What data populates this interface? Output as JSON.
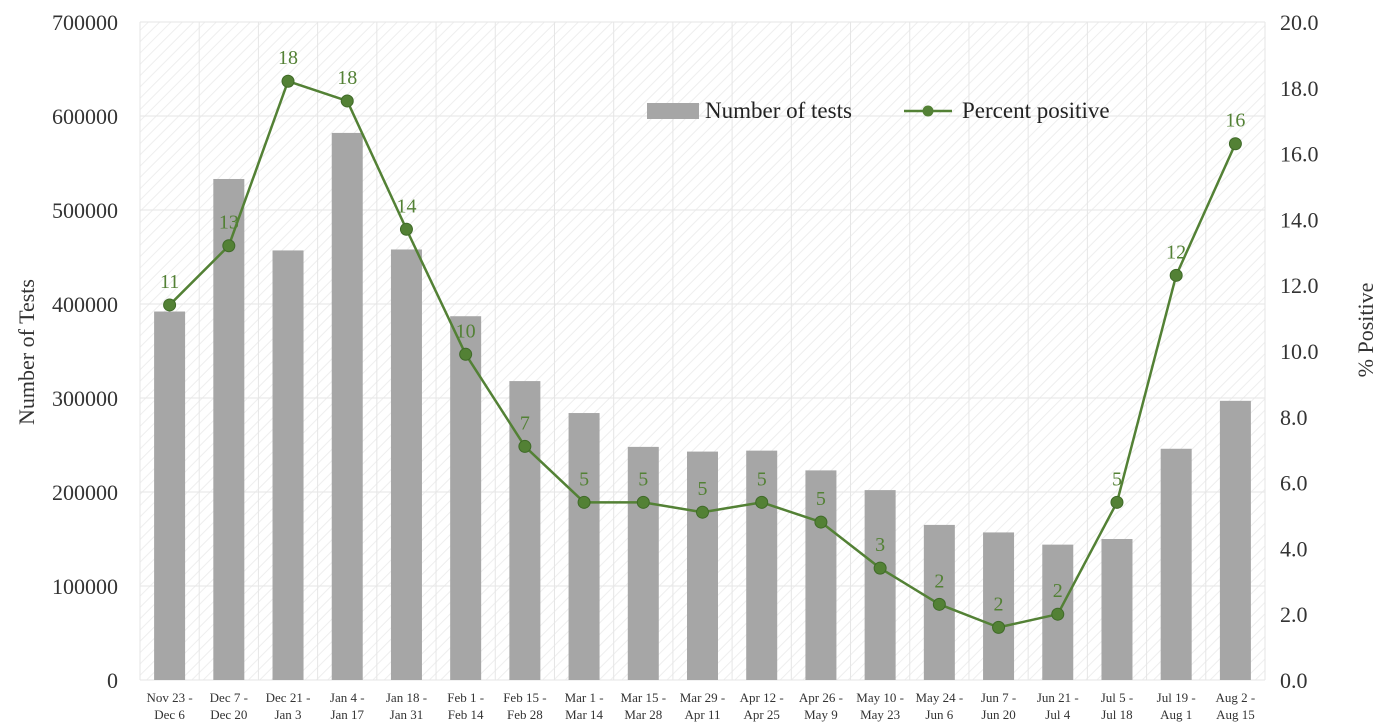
{
  "chart_data": {
    "type": "bar",
    "categories": [
      [
        "Nov 23 -",
        "Dec 6"
      ],
      [
        "Dec 7 -",
        "Dec 20"
      ],
      [
        "Dec 21 -",
        "Jan 3"
      ],
      [
        "Jan 4 -",
        "Jan 17"
      ],
      [
        "Jan 18 -",
        "Jan 31"
      ],
      [
        "Feb 1 -",
        "Feb 14"
      ],
      [
        "Feb 15 -",
        "Feb 28"
      ],
      [
        "Mar 1 -",
        "Mar 14"
      ],
      [
        "Mar 15 -",
        "Mar 28"
      ],
      [
        "Mar 29 -",
        "Apr 11"
      ],
      [
        "Apr 12 -",
        "Apr 25"
      ],
      [
        "Apr 26 -",
        "May 9"
      ],
      [
        "May 10 -",
        "May 23"
      ],
      [
        "May 24 -",
        "Jun 6"
      ],
      [
        "Jun 7 -",
        "Jun 20"
      ],
      [
        "Jun 21 -",
        "Jul 4"
      ],
      [
        "Jul 5 -",
        "Jul 18"
      ],
      [
        "Jul 19 -",
        "Aug 1"
      ],
      [
        "Aug 2 -",
        "Aug 15"
      ]
    ],
    "series": [
      {
        "name": "Number of tests",
        "type": "bar",
        "axis": "left",
        "color": "#a6a6a6",
        "values": [
          392000,
          533000,
          457000,
          582000,
          458000,
          387000,
          318000,
          284000,
          248000,
          243000,
          244000,
          223000,
          202000,
          165000,
          157000,
          144000,
          150000,
          246000,
          297000
        ]
      },
      {
        "name": "Percent positive",
        "type": "line",
        "axis": "right",
        "color": "#538135",
        "values": [
          11.4,
          13.2,
          18.2,
          17.6,
          13.7,
          9.9,
          7.1,
          5.4,
          5.4,
          5.1,
          5.4,
          4.8,
          3.4,
          2.3,
          1.6,
          2.0,
          5.4,
          12.3,
          16.3
        ],
        "data_labels": [
          "11",
          "13",
          "18",
          "18",
          "14",
          "10",
          "7",
          "5",
          "5",
          "5",
          "5",
          "5",
          "3",
          "2",
          "2",
          "2",
          "5",
          "12",
          "16"
        ]
      }
    ],
    "title": "",
    "xlabel": "",
    "ylabel": "Number of Tests",
    "y2label": "% Positive",
    "ylim": [
      0,
      700000
    ],
    "y2lim": [
      0,
      20
    ],
    "yticks": [
      "0",
      "100000",
      "200000",
      "300000",
      "400000",
      "500000",
      "600000",
      "700000"
    ],
    "y2ticks": [
      "0.0",
      "2.0",
      "4.0",
      "6.0",
      "8.0",
      "10.0",
      "12.0",
      "14.0",
      "16.0",
      "18.0",
      "20.0"
    ],
    "grid": true,
    "legend": "top-right"
  }
}
